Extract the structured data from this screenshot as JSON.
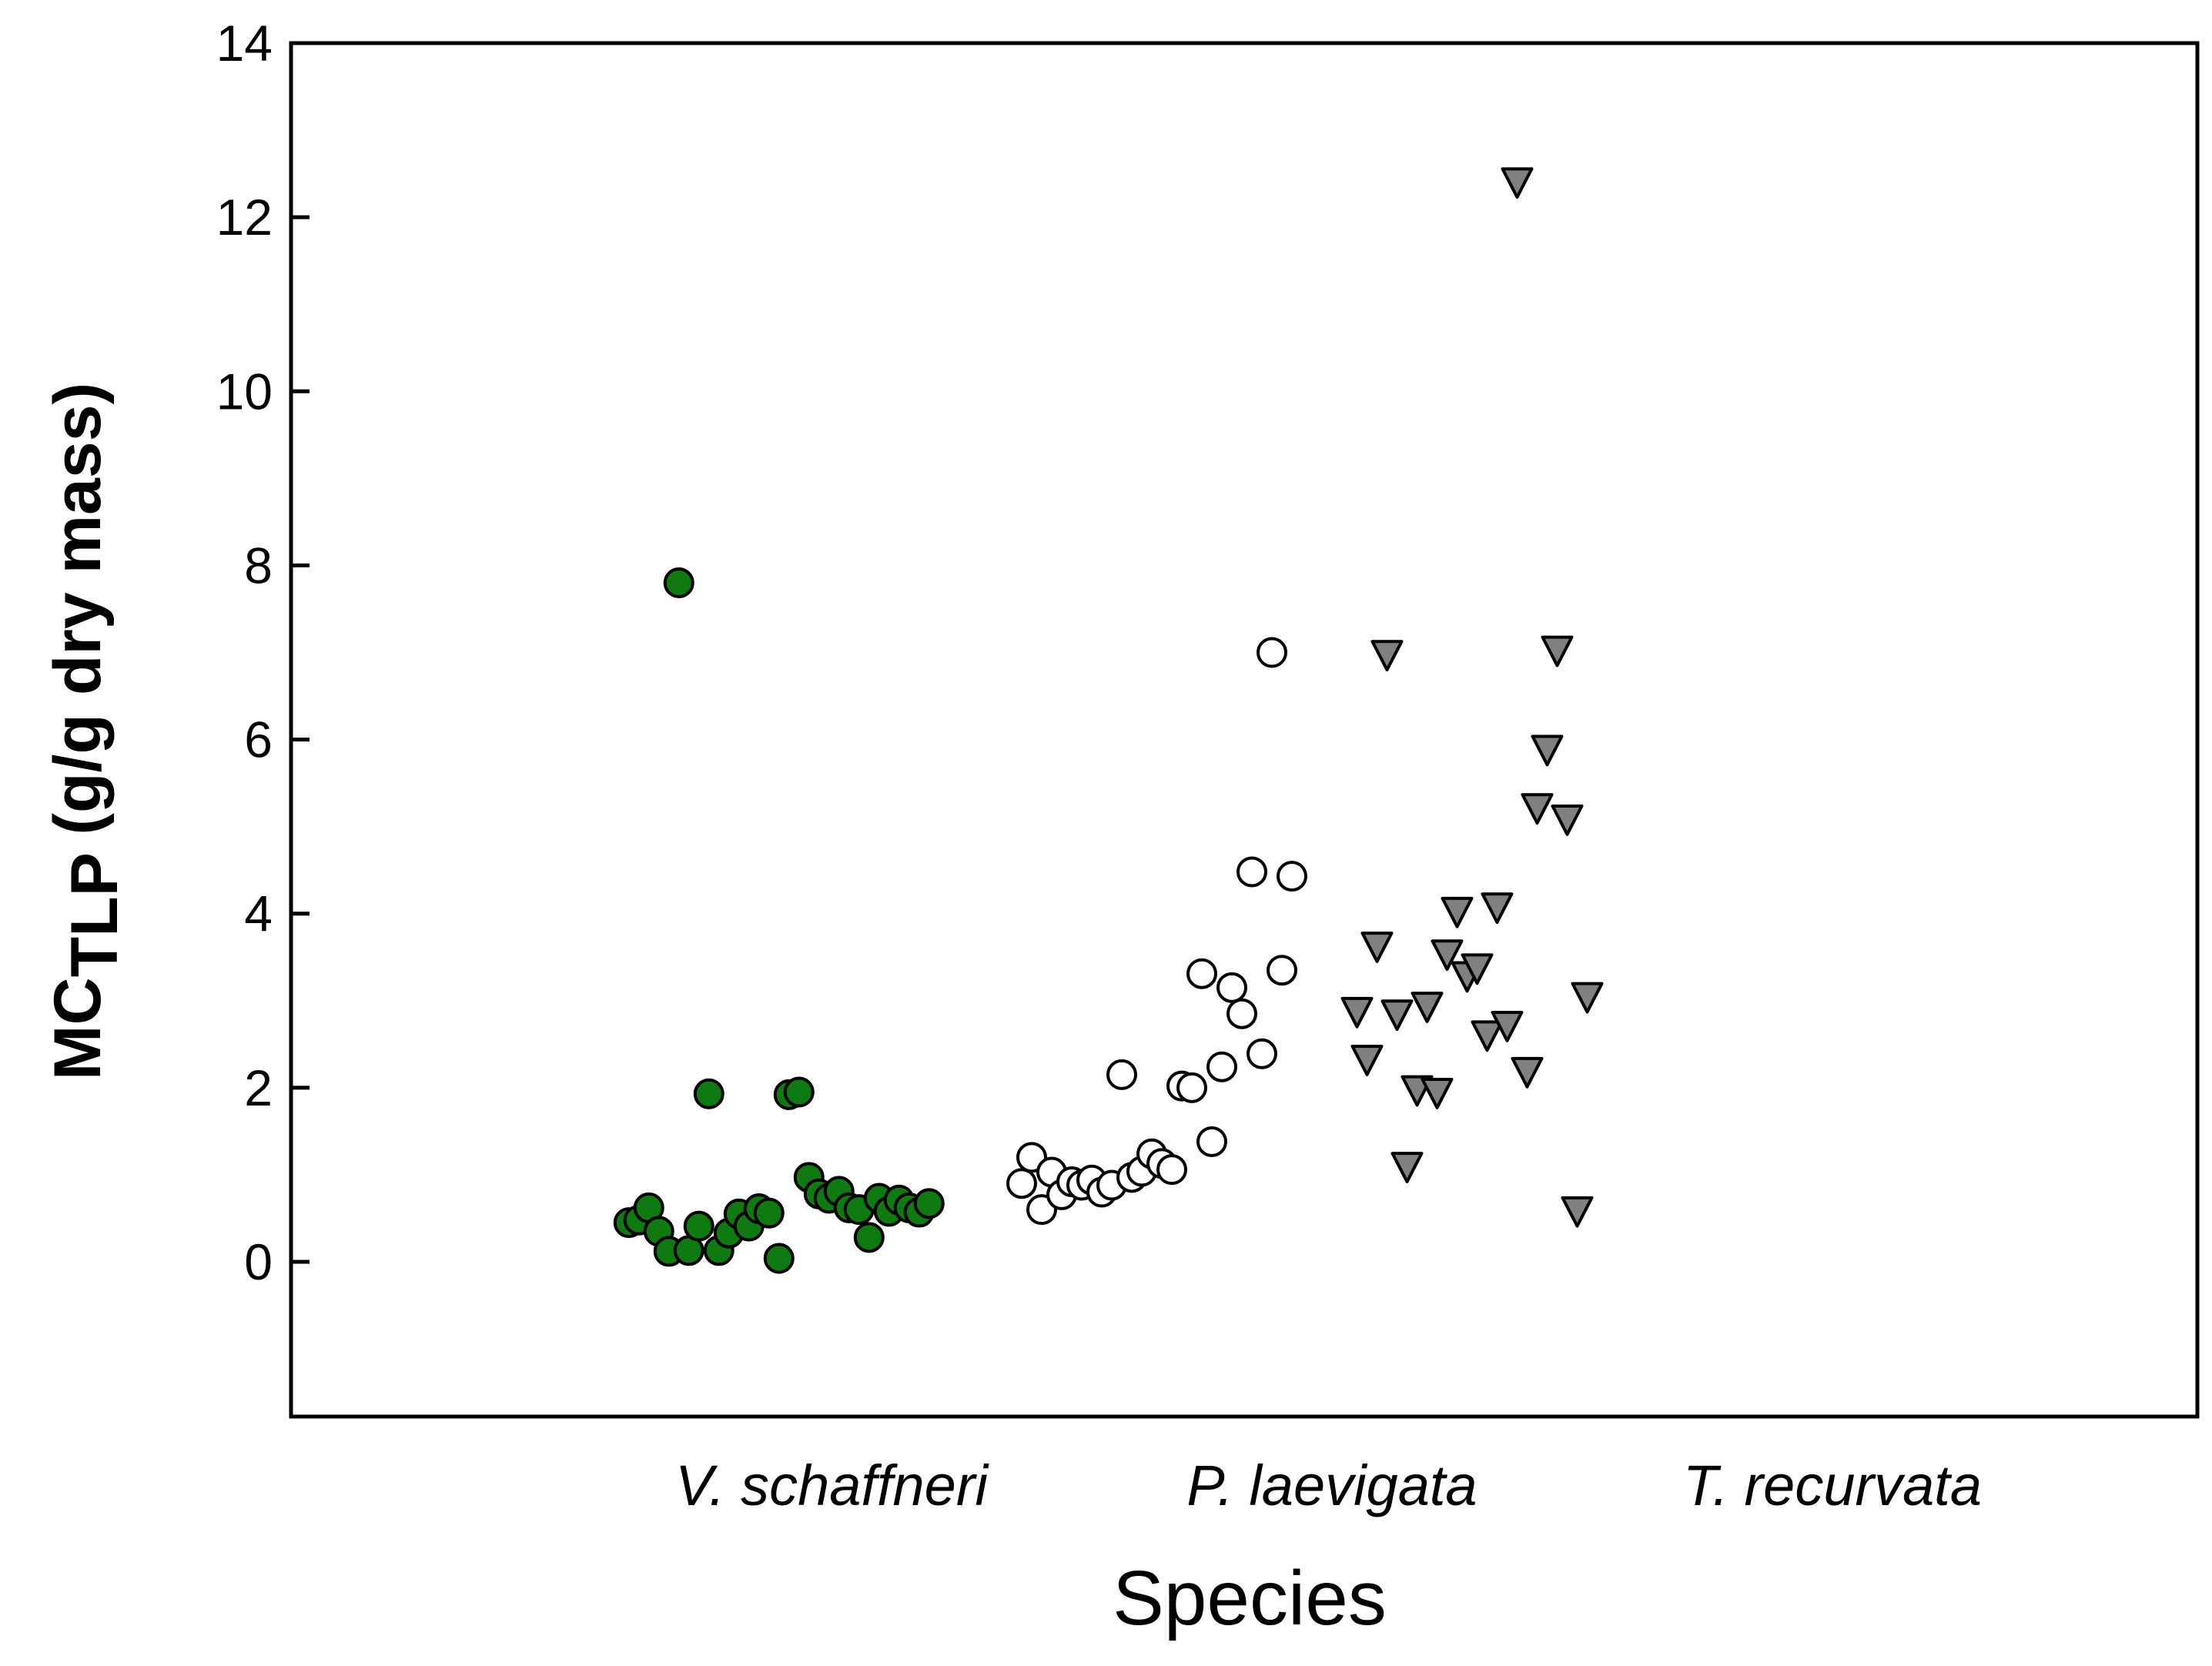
{
  "chart_data": {
    "type": "scatter",
    "title": "",
    "xlabel": "Species",
    "ylabel": {
      "main": "MC",
      "subscript": "TLP",
      "rest": " (g/g dry mass)"
    },
    "ylim": [
      -1.8,
      14
    ],
    "yticks": [
      0,
      2,
      4,
      6,
      8,
      10,
      12,
      14
    ],
    "grid": false,
    "legend": "none",
    "categories": [
      "V. schaffneri",
      "P. laevigata",
      "T. recurvata"
    ],
    "series": [
      {
        "name": "V. schaffneri",
        "marker": "circle",
        "fill": "#0f7a12",
        "stroke": "#000000",
        "points": [
          {
            "x": 0.595,
            "y": 0.45
          },
          {
            "x": 0.615,
            "y": 0.48
          },
          {
            "x": 0.635,
            "y": 0.62
          },
          {
            "x": 0.655,
            "y": 0.35
          },
          {
            "x": 0.675,
            "y": 0.12
          },
          {
            "x": 0.695,
            "y": 7.8
          },
          {
            "x": 0.715,
            "y": 0.13
          },
          {
            "x": 0.735,
            "y": 0.41
          },
          {
            "x": 0.755,
            "y": 1.93
          },
          {
            "x": 0.775,
            "y": 0.13
          },
          {
            "x": 0.795,
            "y": 0.33
          },
          {
            "x": 0.815,
            "y": 0.55
          },
          {
            "x": 0.835,
            "y": 0.41
          },
          {
            "x": 0.855,
            "y": 0.61
          },
          {
            "x": 0.875,
            "y": 0.56
          },
          {
            "x": 0.895,
            "y": 0.04
          },
          {
            "x": 0.915,
            "y": 1.92
          },
          {
            "x": 0.935,
            "y": 1.95
          },
          {
            "x": 0.955,
            "y": 0.97
          },
          {
            "x": 0.975,
            "y": 0.78
          },
          {
            "x": 0.995,
            "y": 0.73
          },
          {
            "x": 1.015,
            "y": 0.81
          },
          {
            "x": 1.035,
            "y": 0.62
          },
          {
            "x": 1.055,
            "y": 0.6
          },
          {
            "x": 1.075,
            "y": 0.28
          },
          {
            "x": 1.095,
            "y": 0.73
          },
          {
            "x": 1.115,
            "y": 0.58
          },
          {
            "x": 1.135,
            "y": 0.71
          },
          {
            "x": 1.155,
            "y": 0.62
          },
          {
            "x": 1.175,
            "y": 0.57
          },
          {
            "x": 1.195,
            "y": 0.67
          }
        ]
      },
      {
        "name": "P. laevigata",
        "marker": "circle",
        "fill": "#ffffff",
        "stroke": "#000000",
        "points": [
          {
            "x": 1.38,
            "y": 0.9
          },
          {
            "x": 1.4,
            "y": 1.2
          },
          {
            "x": 1.42,
            "y": 0.6
          },
          {
            "x": 1.44,
            "y": 1.03
          },
          {
            "x": 1.46,
            "y": 0.77
          },
          {
            "x": 1.48,
            "y": 0.92
          },
          {
            "x": 1.5,
            "y": 0.88
          },
          {
            "x": 1.52,
            "y": 0.94
          },
          {
            "x": 1.54,
            "y": 0.8
          },
          {
            "x": 1.56,
            "y": 0.88
          },
          {
            "x": 1.58,
            "y": 2.15
          },
          {
            "x": 1.6,
            "y": 0.97
          },
          {
            "x": 1.62,
            "y": 1.04
          },
          {
            "x": 1.64,
            "y": 1.24
          },
          {
            "x": 1.66,
            "y": 1.13
          },
          {
            "x": 1.68,
            "y": 1.06
          },
          {
            "x": 1.7,
            "y": 2.02
          },
          {
            "x": 1.72,
            "y": 2.0
          },
          {
            "x": 1.74,
            "y": 3.31
          },
          {
            "x": 1.76,
            "y": 1.38
          },
          {
            "x": 1.78,
            "y": 2.24
          },
          {
            "x": 1.8,
            "y": 3.15
          },
          {
            "x": 1.82,
            "y": 2.85
          },
          {
            "x": 1.84,
            "y": 4.48
          },
          {
            "x": 1.86,
            "y": 2.39
          },
          {
            "x": 1.88,
            "y": 7.0
          },
          {
            "x": 1.9,
            "y": 3.35
          },
          {
            "x": 1.92,
            "y": 4.43
          }
        ]
      },
      {
        "name": "T. recurvata",
        "marker": "triangle-down",
        "fill": "#808080",
        "stroke": "#000000",
        "points": [
          {
            "x": 2.05,
            "y": 2.87
          },
          {
            "x": 2.07,
            "y": 2.32
          },
          {
            "x": 2.09,
            "y": 3.62
          },
          {
            "x": 2.11,
            "y": 6.97
          },
          {
            "x": 2.13,
            "y": 2.84
          },
          {
            "x": 2.15,
            "y": 1.09
          },
          {
            "x": 2.17,
            "y": 1.97
          },
          {
            "x": 2.19,
            "y": 2.93
          },
          {
            "x": 2.21,
            "y": 1.94
          },
          {
            "x": 2.23,
            "y": 3.53
          },
          {
            "x": 2.25,
            "y": 4.02
          },
          {
            "x": 2.27,
            "y": 3.28
          },
          {
            "x": 2.29,
            "y": 3.37
          },
          {
            "x": 2.31,
            "y": 2.6
          },
          {
            "x": 2.33,
            "y": 4.07
          },
          {
            "x": 2.35,
            "y": 2.71
          },
          {
            "x": 2.37,
            "y": 12.4
          },
          {
            "x": 2.39,
            "y": 2.18
          },
          {
            "x": 2.41,
            "y": 5.21
          },
          {
            "x": 2.43,
            "y": 5.88
          },
          {
            "x": 2.45,
            "y": 7.02
          },
          {
            "x": 2.47,
            "y": 5.08
          },
          {
            "x": 2.49,
            "y": 0.58
          },
          {
            "x": 2.51,
            "y": 3.04
          }
        ]
      }
    ]
  }
}
